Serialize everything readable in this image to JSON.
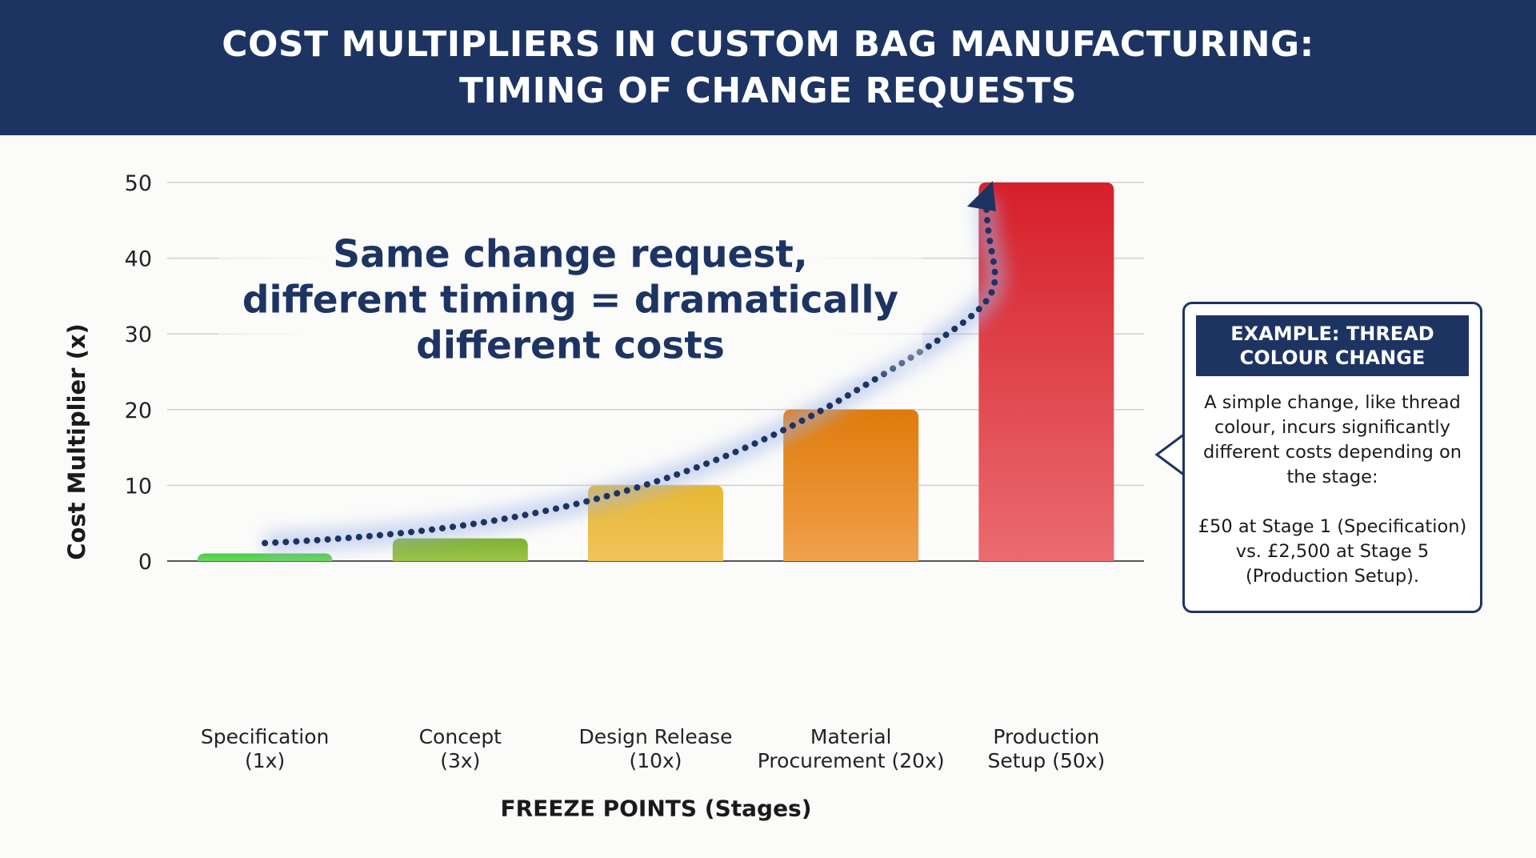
{
  "header": {
    "title_line1": "COST MULTIPLIERS IN CUSTOM BAG MANUFACTURING:",
    "title_line2": "TIMING OF CHANGE REQUESTS"
  },
  "headline": {
    "line1": "Same change request,",
    "line2": "different timing = dramatically",
    "line3": "different costs"
  },
  "callout": {
    "title": "EXAMPLE: THREAD COLOUR CHANGE",
    "body1": "A simple change, like thread colour, incurs significantly different costs depending on the stage:",
    "body2": "£50 at Stage 1 (Specification) vs. £2,500 at Stage 5 (Production Setup)."
  },
  "chart_data": {
    "type": "bar",
    "title": "COST MULTIPLIERS IN CUSTOM BAG MANUFACTURING: TIMING OF CHANGE REQUESTS",
    "xlabel": "FREEZE POINTS (Stages)",
    "ylabel": "Cost Multiplier (x)",
    "ylim": [
      0,
      50
    ],
    "yticks": [
      "0",
      "10",
      "20",
      "30",
      "40",
      "50"
    ],
    "grid": true,
    "categories": [
      [
        "Specification",
        "(1x)"
      ],
      [
        "Concept",
        "(3x)"
      ],
      [
        "Design Release",
        "(10x)"
      ],
      [
        "Material",
        "Procurement (20x)"
      ],
      [
        "Production",
        "Setup (50x)"
      ]
    ],
    "values": [
      1,
      3,
      10,
      20,
      50
    ],
    "colors": [
      [
        "#4cc94a",
        "#6fdb5e"
      ],
      [
        "#7fb02e",
        "#9cc44a"
      ],
      [
        "#e8b733",
        "#f0c35a"
      ],
      [
        "#e07b0c",
        "#f0a04c"
      ],
      [
        "#d61f2a",
        "#ea6b70"
      ]
    ],
    "trend_color": "#1d3463"
  }
}
